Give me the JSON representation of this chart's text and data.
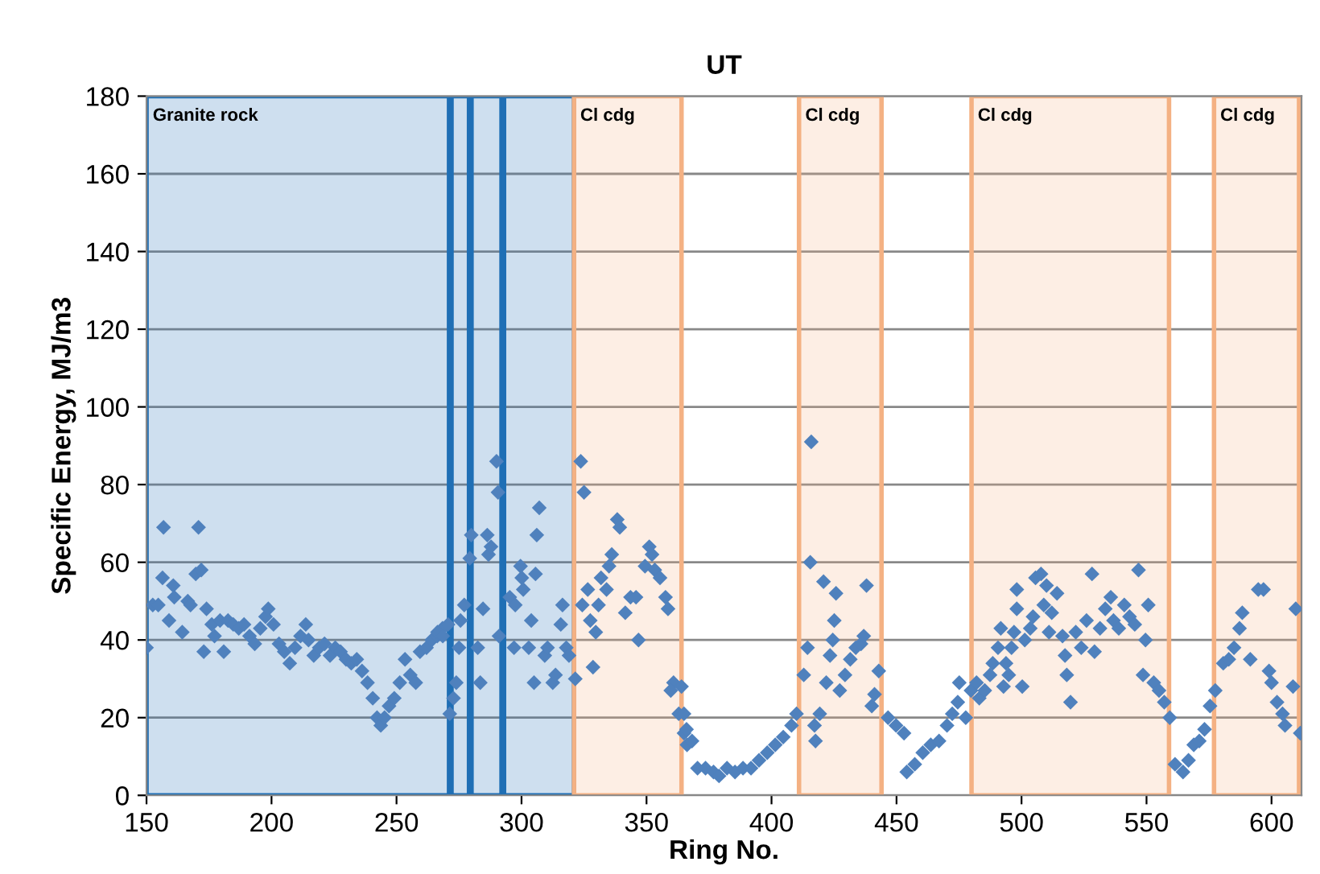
{
  "chart_data": {
    "type": "scatter",
    "title": "UT",
    "xlabel": "Ring No.",
    "ylabel": "Specific Energy, MJ/m3",
    "xlim": [
      150,
      612
    ],
    "ylim": [
      0,
      180
    ],
    "xticks": [
      150,
      200,
      250,
      300,
      350,
      400,
      450,
      500,
      550,
      600
    ],
    "yticks": [
      0,
      20,
      40,
      60,
      80,
      100,
      120,
      140,
      160,
      180
    ],
    "grid": "y",
    "marker": "diamond",
    "bands": [
      {
        "axis": "x",
        "from": 150,
        "to": 271,
        "label": "Granite rock",
        "color": "#1f6fb5"
      },
      {
        "axis": "x",
        "from": 272,
        "to": 279,
        "color": "#1f6fb5"
      },
      {
        "axis": "x",
        "from": 280,
        "to": 292,
        "color": "#1f6fb5"
      },
      {
        "axis": "x",
        "from": 293,
        "to": 321,
        "color": "#1f6fb5"
      },
      {
        "axis": "x",
        "from": 321,
        "to": 364,
        "label": "Cl cdg",
        "color": "#f4b183"
      },
      {
        "axis": "x",
        "from": 411,
        "to": 444,
        "label": "Cl cdg",
        "color": "#f4b183"
      },
      {
        "axis": "x",
        "from": 480,
        "to": 559,
        "label": "Cl cdg",
        "color": "#f4b183"
      },
      {
        "axis": "x",
        "from": 577,
        "to": 611,
        "label": "Cl cdg",
        "color": "#f4b183"
      }
    ],
    "series": [
      {
        "color": "#4f81bd",
        "x": [
          150.0,
          152.5,
          154.7,
          156.8,
          156.4,
          159,
          160.7,
          161.1,
          164.3,
          166.5,
          167.6,
          170.8,
          169.7,
          171.9,
          172.9,
          174,
          176.1,
          177.2,
          179.4,
          180.9,
          182.6,
          184.7,
          186.9,
          189,
          191.2,
          193.3,
          195.5,
          197.6,
          198.7,
          200.8,
          203,
          205.1,
          207.3,
          209.4,
          211.6,
          213.7,
          214.8,
          216.9,
          219.1,
          221.2,
          223.4,
          225.5,
          227.6,
          229.8,
          231.9,
          234.1,
          236.2,
          238.4,
          240.5,
          242.2,
          243.7,
          245.2,
          247,
          249.1,
          251.3,
          253.4,
          255.5,
          257.7,
          259.4,
          262,
          264.1,
          266.3,
          268.4,
          270.6,
          266.4,
          268.5,
          271.3,
          272.8,
          273.9,
          275,
          275.6,
          277.1,
          279.3,
          279.9,
          282.5,
          283.5,
          284.6,
          286.3,
          286.8,
          287.8,
          290,
          290.6,
          291,
          295.3,
          297,
          297.5,
          299.6,
          300.1,
          300.7,
          302.9,
          303.9,
          305,
          306.1,
          307.1,
          305.6,
          309.3,
          310.4,
          312.5,
          313.6,
          315.7,
          316.4,
          317.9,
          319,
          321.5,
          323.7,
          325,
          324.3,
          326.5,
          327.5,
          329.7,
          328.6,
          330.8,
          331.8,
          334,
          335,
          336.1,
          338.3,
          339.3,
          341.5,
          343.6,
          345.8,
          346.8,
          349.4,
          351.1,
          352.2,
          353.3,
          355.4,
          357.6,
          358.6,
          360.8,
          359.7,
          362.9,
          365,
          366.2,
          364,
          365,
          366,
          368.2,
          370.4,
          373.6,
          376.8,
          379,
          382.2,
          385.4,
          388.6,
          391.8,
          395,
          398.3,
          401.5,
          404.7,
          408,
          410,
          412.9,
          414.4,
          415.9,
          415.5,
          417.2,
          417.6,
          419.3,
          420.8,
          421.9,
          423.4,
          424.5,
          425.1,
          425.8,
          427.3,
          429.4,
          431.5,
          433.7,
          435.8,
          436.9,
          438,
          440.1,
          441.2,
          442.9,
          446.6,
          449.8,
          453,
          454.1,
          457.3,
          460.5,
          463.7,
          467,
          470.2,
          472.3,
          474.5,
          475.1,
          477.7,
          479.8,
          482,
          483.1,
          485.3,
          487.4,
          488.5,
          490.6,
          491.7,
          492.8,
          493.8,
          494.9,
          496,
          497,
          498.1,
          498.1,
          500.3,
          501.3,
          503.5,
          504.6,
          505.6,
          507.8,
          508.9,
          510,
          511,
          512.1,
          514.2,
          516.4,
          517.4,
          518.1,
          519.6,
          521.7,
          523.9,
          526,
          528.2,
          529.2,
          531.4,
          533.5,
          535.7,
          536.8,
          538.9,
          541.1,
          543.2,
          545.3,
          546.8,
          549.6,
          550.7,
          548.6,
          552.9,
          555,
          557.1,
          559.3,
          561.4,
          564.6,
          566.8,
          568.9,
          571.1,
          573.2,
          575.4,
          577.5,
          580.7,
          582.9,
          585,
          587.2,
          588.3,
          591.5,
          594.7,
          596.8,
          599,
          600,
          602.2,
          604.4,
          605.4,
          608.6,
          609.7,
          611.5
        ],
        "values": [
          38,
          49,
          49,
          69,
          56,
          45,
          54,
          51,
          42,
          50,
          49,
          69,
          57,
          58,
          37,
          48,
          44,
          41,
          45,
          37,
          45,
          44,
          43,
          44,
          41,
          39,
          43,
          46,
          48,
          44,
          39,
          37,
          34,
          38,
          41,
          44,
          40,
          36,
          38,
          39,
          36,
          38,
          37,
          35,
          34,
          35,
          32,
          29,
          25,
          20,
          18,
          20,
          23,
          25,
          29,
          35,
          31,
          29,
          37,
          38,
          40,
          41,
          43,
          44,
          42,
          41,
          21,
          25,
          29,
          38,
          45,
          49,
          61,
          67,
          38,
          29,
          48,
          67,
          62,
          64,
          86,
          78,
          41,
          51,
          38,
          49,
          59,
          56,
          53,
          38,
          45,
          29,
          67,
          74,
          57,
          36,
          38,
          29,
          31,
          44,
          49,
          38,
          36,
          30,
          86,
          78,
          49,
          53,
          45,
          42,
          33,
          49,
          56,
          53,
          59,
          62,
          71,
          69,
          47,
          51,
          51,
          40,
          59,
          64,
          62,
          58,
          56,
          51,
          48,
          29,
          27,
          21,
          16,
          13,
          28,
          21,
          17,
          14,
          7,
          7,
          6,
          5,
          7,
          6,
          7,
          7,
          9,
          11,
          13,
          15,
          18,
          21,
          31,
          38,
          91,
          60,
          18,
          14,
          21,
          55,
          29,
          36,
          40,
          45,
          52,
          27,
          31,
          35,
          38,
          39,
          41,
          54,
          23,
          26,
          32,
          20,
          18,
          16,
          6,
          8,
          11,
          13,
          14,
          18,
          21,
          24,
          29,
          20,
          27,
          29,
          25,
          27,
          31,
          34,
          38,
          43,
          28,
          34,
          31,
          38,
          42,
          48,
          53,
          28,
          40,
          43,
          46,
          56,
          57,
          49,
          54,
          42,
          47,
          52,
          41,
          36,
          31,
          24,
          42,
          38,
          45,
          57,
          37,
          43,
          48,
          51,
          45,
          43,
          49,
          46,
          44,
          58,
          40,
          49,
          31,
          29,
          27,
          24,
          20,
          8,
          6,
          9,
          13,
          14,
          17,
          23,
          27,
          34,
          35,
          38,
          43,
          47,
          35,
          53,
          53,
          32,
          29,
          24,
          21,
          18,
          28,
          48,
          16
        ]
      }
    ]
  }
}
